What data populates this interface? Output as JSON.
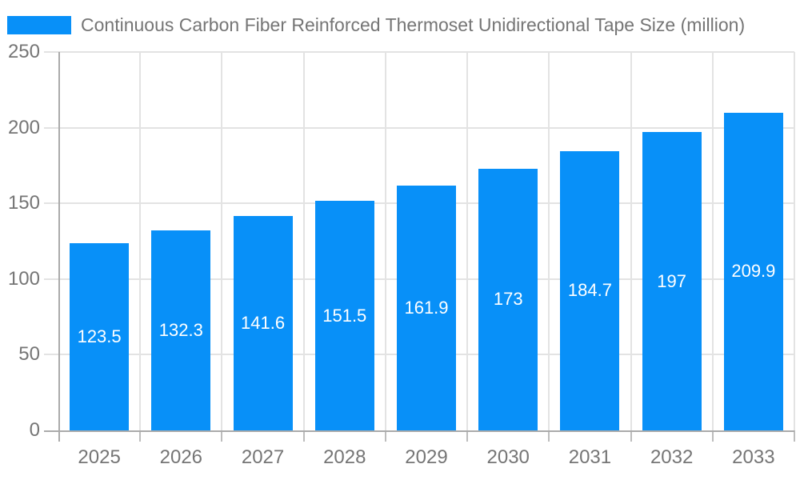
{
  "chart_data": {
    "type": "bar",
    "title": "Continuous Carbon Fiber Reinforced Thermoset Unidirectional Tape Size (million)",
    "categories": [
      "2025",
      "2026",
      "2027",
      "2028",
      "2029",
      "2030",
      "2031",
      "2032",
      "2033"
    ],
    "values": [
      123.5,
      132.3,
      141.6,
      151.5,
      161.9,
      173,
      184.7,
      197,
      209.9
    ],
    "value_labels": [
      "123.5",
      "132.3",
      "141.6",
      "151.5",
      "161.9",
      "173",
      "184.7",
      "197",
      "209.9"
    ],
    "xlabel": "",
    "ylabel": "",
    "ylim": [
      0,
      250
    ],
    "yticks": [
      0,
      50,
      100,
      150,
      200,
      250
    ],
    "grid": true,
    "legend_position": "top-left",
    "colors": {
      "bar": "#0890F8",
      "value_label": "#FFFFFF",
      "text": "#757575",
      "gridline": "#E3E3E3",
      "axis_line": "#ABABAB",
      "bottom_tick": "#BDBDBD",
      "background": "#FFFFFF"
    }
  }
}
